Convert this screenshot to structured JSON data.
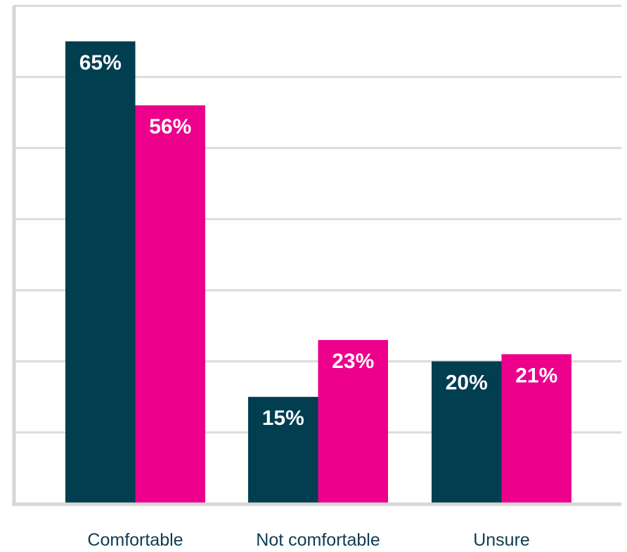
{
  "chart_data": {
    "type": "bar",
    "categories": [
      "Comfortable",
      "Not comfortable",
      "Unsure"
    ],
    "series": [
      {
        "values": [
          65,
          15,
          20
        ],
        "labels": [
          "65%",
          "15%",
          "20%"
        ],
        "color": "#013e50"
      },
      {
        "values": [
          56,
          23,
          21
        ],
        "labels": [
          "56%",
          "23%",
          "21%"
        ],
        "color": "#ec008c"
      }
    ],
    "ylim": [
      0,
      70
    ],
    "grid": true,
    "colors": {
      "gridline": "#dcdcdc",
      "axis": "#d6d6d6",
      "category_text": "#0e3d52",
      "value_text": "#ffffff"
    }
  }
}
